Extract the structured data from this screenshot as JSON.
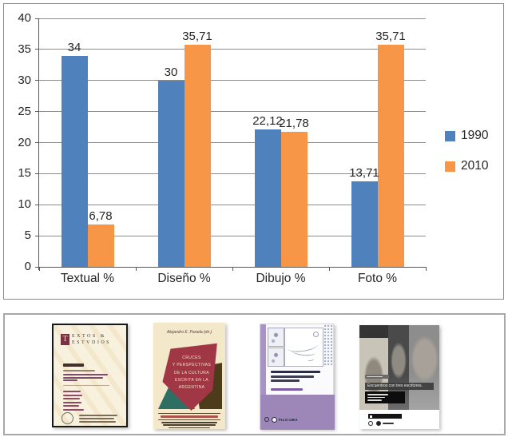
{
  "chart_data": {
    "type": "bar",
    "title": "",
    "categories": [
      "Textual %",
      "Diseño %",
      "Dibujo %",
      "Foto %"
    ],
    "series": [
      {
        "name": "1990",
        "color": "#4f81bd",
        "values": [
          34,
          30,
          22.12,
          13.71
        ]
      },
      {
        "name": "2010",
        "color": "#f79646",
        "values": [
          6.78,
          35.71,
          21.78,
          35.71
        ]
      }
    ],
    "value_labels": [
      [
        "34",
        "30",
        "22,12",
        "13,71"
      ],
      [
        "6,78",
        "35,71",
        "21,78",
        "35,71"
      ]
    ],
    "xlabel": "",
    "ylabel": "",
    "ylim": [
      0,
      40
    ],
    "ytick_step": 5,
    "yticks": [
      "0",
      "5",
      "10",
      "15",
      "20",
      "25",
      "30",
      "35",
      "40"
    ],
    "grid": true,
    "legend_position": "right",
    "decimal_separator": ","
  },
  "books_panel": {
    "covers": [
      {
        "id": "textos-y-estudios",
        "drop_cap": "T",
        "header_line1": "EXTOS &",
        "header_line2": "ESTVDIOS"
      },
      {
        "id": "cruces-y-perspectivas",
        "author": "Alejandro E. Parada (dir.)",
        "title_lines": [
          "CRUCES",
          "Y PERSPECTIVAS",
          "DE LA CULTURA",
          "ESCRITA EN LA",
          "ARGENTINA"
        ]
      },
      {
        "id": "universidad-catedra",
        "logo": "FILO:UBA"
      },
      {
        "id": "encuentros",
        "title": "Encuentros con tres escritores."
      }
    ]
  }
}
